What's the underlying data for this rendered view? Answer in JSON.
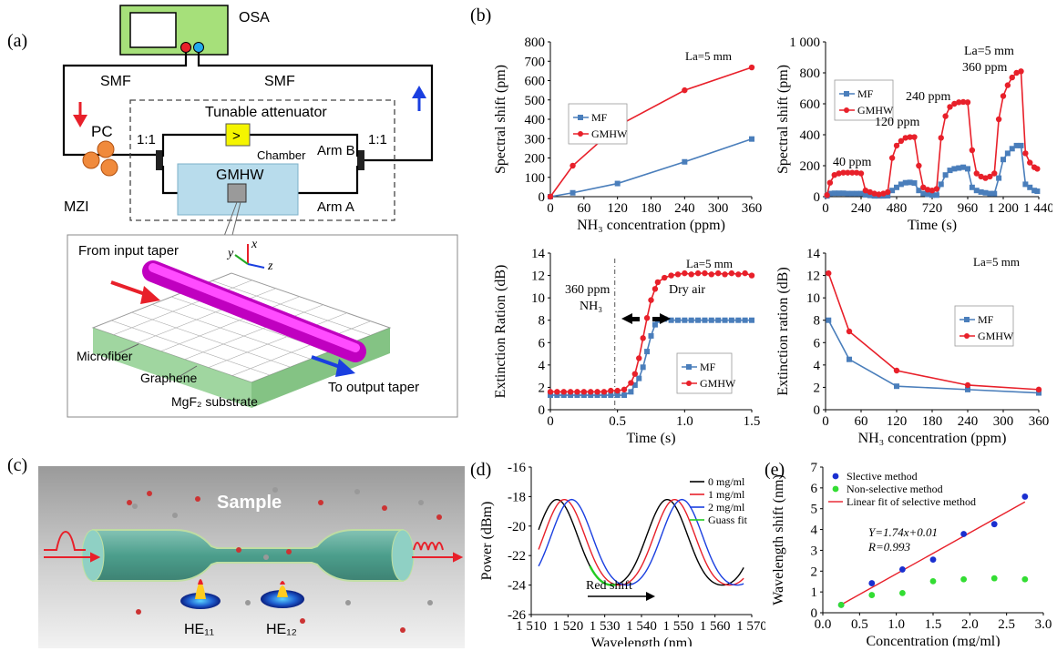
{
  "panel_labels": {
    "a": "(a)",
    "b": "(b)",
    "c": "(c)",
    "d": "(d)",
    "e": "(e)"
  },
  "schematic_a": {
    "osa": "OSA",
    "smf_left": "SMF",
    "smf_right": "SMF",
    "pc": "PC",
    "mzi": "MZI",
    "coupler_left": "1:1",
    "coupler_right": "1:1",
    "tunable_attenuator": "Tunable attenuator",
    "chamber": "Chamber",
    "gmhw": "GMHW",
    "arm_a": "Arm A",
    "arm_b": "Arm B",
    "attenuator_symbol": ">",
    "from_input_taper": "From input taper",
    "to_output_taper": "To output taper",
    "microfiber": "Microfiber",
    "graphene": "Graphene",
    "substrate": "MgF₂ substrate",
    "axis_x": "x",
    "axis_y": "y",
    "axis_z": "z",
    "colors": {
      "arrow_red": "#e8202a",
      "arrow_blue": "#1a3fe0",
      "fiber": "#e000e0",
      "substrate": "#8fcf8f",
      "osa_body": "#a6e07a",
      "attenuator": "#f5f500"
    }
  },
  "illustration_c": {
    "sample": "Sample",
    "mode1": "HE₁₁",
    "mode2": "HE₁₂"
  },
  "chart_data": [
    {
      "id": "b1",
      "type": "line",
      "ylabel": "Spectral shift (pm)",
      "xlabel": "NH₃ concentration (ppm)",
      "annotation": "La=5 mm",
      "x": [
        0,
        40,
        120,
        240,
        360
      ],
      "xticks": [
        "0",
        "60",
        "120",
        "180",
        "240",
        "300",
        "360"
      ],
      "yticks": [
        "0",
        "100",
        "200",
        "300",
        "400",
        "500",
        "600",
        "700",
        "800"
      ],
      "xlim": [
        0,
        360
      ],
      "ylim": [
        0,
        800
      ],
      "series": [
        {
          "name": "MF",
          "color": "#4a7ebb",
          "marker": "square",
          "values": [
            0,
            20,
            68,
            180,
            298
          ]
        },
        {
          "name": "GMHW",
          "color": "#e8202a",
          "marker": "circle",
          "values": [
            0,
            160,
            365,
            550,
            668
          ]
        }
      ]
    },
    {
      "id": "b2",
      "type": "line",
      "ylabel": "Spectral shift (pm)",
      "xlabel": "Time (s)",
      "annotations": [
        "La=5 mm",
        "360 ppm",
        "240 ppm",
        "120 ppm",
        "40 ppm"
      ],
      "xticks": [
        "0",
        "240",
        "480",
        "720",
        "960",
        "1 200",
        "1 440"
      ],
      "yticks": [
        "0",
        "200",
        "400",
        "600",
        "800",
        "1 000"
      ],
      "xlim": [
        0,
        1440
      ],
      "ylim": [
        0,
        1000
      ],
      "series": [
        {
          "name": "MF",
          "color": "#4a7ebb",
          "marker": "square",
          "x": [
            10,
            30,
            60,
            90,
            120,
            150,
            180,
            210,
            240,
            270,
            300,
            330,
            360,
            390,
            420,
            450,
            480,
            510,
            540,
            570,
            600,
            630,
            660,
            690,
            720,
            750,
            780,
            810,
            840,
            870,
            900,
            930,
            960,
            990,
            1020,
            1050,
            1080,
            1110,
            1140,
            1170,
            1200,
            1230,
            1260,
            1290,
            1320,
            1350,
            1380,
            1410,
            1430
          ],
          "values": [
            5,
            20,
            22,
            22,
            22,
            20,
            20,
            20,
            20,
            12,
            8,
            5,
            5,
            5,
            6,
            40,
            60,
            80,
            90,
            92,
            88,
            40,
            20,
            15,
            10,
            10,
            80,
            140,
            170,
            180,
            185,
            190,
            180,
            60,
            40,
            30,
            25,
            20,
            20,
            120,
            240,
            280,
            310,
            330,
            330,
            80,
            60,
            40,
            35
          ]
        },
        {
          "name": "GMHW",
          "color": "#e8202a",
          "marker": "circle",
          "x": [
            10,
            30,
            60,
            90,
            120,
            150,
            180,
            210,
            240,
            270,
            300,
            330,
            360,
            390,
            420,
            450,
            480,
            510,
            540,
            570,
            600,
            630,
            660,
            690,
            720,
            750,
            780,
            810,
            840,
            870,
            900,
            930,
            960,
            990,
            1020,
            1050,
            1080,
            1110,
            1140,
            1170,
            1200,
            1230,
            1260,
            1290,
            1320,
            1350,
            1380,
            1410,
            1430
          ],
          "values": [
            10,
            90,
            140,
            150,
            155,
            155,
            155,
            155,
            150,
            40,
            30,
            20,
            15,
            20,
            30,
            250,
            330,
            360,
            380,
            385,
            385,
            200,
            60,
            45,
            40,
            50,
            380,
            520,
            580,
            600,
            610,
            612,
            610,
            300,
            150,
            130,
            120,
            130,
            150,
            500,
            650,
            720,
            770,
            800,
            810,
            280,
            220,
            190,
            180
          ]
        }
      ]
    },
    {
      "id": "b3",
      "type": "line",
      "ylabel": "Extinction Ration (dB)",
      "xlabel": "Time (s)",
      "annotations": [
        "La=5 mm",
        "360 ppm",
        "NH₃",
        "Dry air"
      ],
      "xticks": [
        "0",
        "0.5",
        "1.0",
        "1.5"
      ],
      "yticks": [
        "0",
        "2",
        "4",
        "6",
        "8",
        "10",
        "12",
        "14"
      ],
      "xlim": [
        0,
        1.5
      ],
      "ylim": [
        0,
        14
      ],
      "series": [
        {
          "name": "MF",
          "color": "#4a7ebb",
          "marker": "square",
          "x": [
            0.0,
            0.05,
            0.1,
            0.15,
            0.2,
            0.25,
            0.3,
            0.35,
            0.4,
            0.45,
            0.5,
            0.55,
            0.6,
            0.63,
            0.66,
            0.69,
            0.72,
            0.75,
            0.78,
            0.8,
            0.85,
            0.9,
            0.95,
            1.0,
            1.05,
            1.1,
            1.15,
            1.2,
            1.25,
            1.3,
            1.35,
            1.4,
            1.45,
            1.5
          ],
          "values": [
            1.3,
            1.3,
            1.3,
            1.3,
            1.3,
            1.3,
            1.3,
            1.3,
            1.3,
            1.3,
            1.3,
            1.3,
            1.6,
            2.2,
            2.8,
            3.8,
            5.2,
            6.6,
            7.6,
            8.0,
            8.1,
            8.0,
            8.0,
            8.0,
            8.0,
            8.0,
            8.0,
            8.0,
            8.0,
            8.0,
            8.0,
            8.0,
            8.0,
            8.0
          ]
        },
        {
          "name": "GMHW",
          "color": "#e8202a",
          "marker": "circle",
          "x": [
            0.0,
            0.05,
            0.1,
            0.15,
            0.2,
            0.25,
            0.3,
            0.35,
            0.4,
            0.45,
            0.5,
            0.55,
            0.6,
            0.63,
            0.66,
            0.69,
            0.72,
            0.75,
            0.78,
            0.8,
            0.85,
            0.9,
            0.95,
            1.0,
            1.05,
            1.1,
            1.15,
            1.2,
            1.25,
            1.3,
            1.35,
            1.4,
            1.45,
            1.5
          ],
          "values": [
            1.6,
            1.6,
            1.6,
            1.6,
            1.6,
            1.6,
            1.6,
            1.6,
            1.6,
            1.7,
            1.7,
            1.8,
            2.4,
            3.2,
            4.6,
            6.4,
            8.2,
            9.8,
            10.8,
            11.4,
            11.8,
            12.0,
            12.1,
            12.2,
            12.1,
            12.2,
            12.2,
            12.1,
            12.2,
            12.1,
            12.2,
            12.1,
            12.2,
            12.0
          ]
        }
      ]
    },
    {
      "id": "b4",
      "type": "line",
      "ylabel": "Extinction ration (dB)",
      "xlabel": "NH₃ concentration (ppm)",
      "annotation": "La=5 mm",
      "x": [
        5,
        40,
        120,
        240,
        360
      ],
      "xticks": [
        "0",
        "60",
        "120",
        "180",
        "240",
        "300",
        "360"
      ],
      "yticks": [
        "0",
        "2",
        "4",
        "6",
        "8",
        "10",
        "12",
        "14"
      ],
      "xlim": [
        0,
        360
      ],
      "ylim": [
        0,
        14
      ],
      "series": [
        {
          "name": "MF",
          "color": "#4a7ebb",
          "marker": "square",
          "values": [
            8.0,
            4.5,
            2.1,
            1.8,
            1.5
          ]
        },
        {
          "name": "GMHW",
          "color": "#e8202a",
          "marker": "circle",
          "values": [
            12.2,
            7.0,
            3.5,
            2.2,
            1.8
          ]
        }
      ]
    },
    {
      "id": "d",
      "type": "line",
      "ylabel": "Power (dBm)",
      "xlabel": "Wavelength (nm)",
      "annotation": "Red shift",
      "xticks": [
        "1 510",
        "1 520",
        "1 530",
        "1 540",
        "1 550",
        "1 560",
        "1 570"
      ],
      "yticks": [
        "-26",
        "-24",
        "-22",
        "-20",
        "-18",
        "-16"
      ],
      "xlim": [
        1510,
        1570
      ],
      "ylim": [
        -26,
        -16
      ],
      "series": [
        {
          "name": "0 mg/ml",
          "color": "#000000",
          "x_start": 1512,
          "x_end": 1568,
          "period": 30,
          "peak_at": 1517
        },
        {
          "name": "1 mg/ml",
          "color": "#e8202a",
          "x_start": 1512,
          "x_end": 1568,
          "period": 30,
          "peak_at": 1519
        },
        {
          "name": "2 mg/ml",
          "color": "#1a3fe0",
          "x_start": 1512,
          "x_end": 1568,
          "period": 30,
          "peak_at": 1521
        },
        {
          "name": "Guass fit",
          "color": "#22cc22",
          "x_start": 1526,
          "x_end": 1533,
          "period": 30,
          "peak_at": 1517
        }
      ]
    },
    {
      "id": "e",
      "type": "scatter",
      "ylabel": "Wavelength shift (nm)",
      "xlabel": "Concentration (mg/ml)",
      "equation": "Y=1.74x+0.01",
      "r_value": "R=0.993",
      "xticks": [
        "0.0",
        "0.5",
        "1.0",
        "1.5",
        "2.0",
        "2.5",
        "3.0"
      ],
      "yticks": [
        "0",
        "1",
        "2",
        "3",
        "4",
        "5",
        "6",
        "7"
      ],
      "xlim": [
        -0.3,
        3.3
      ],
      "ylim": [
        -0.4,
        7
      ],
      "series": [
        {
          "name": "Slective method",
          "color": "#1a2fd0",
          "x": [
            0.0,
            0.5,
            1.0,
            1.5,
            2.0,
            2.5,
            3.0
          ],
          "values": [
            0.0,
            1.1,
            1.8,
            2.3,
            3.6,
            4.1,
            5.5
          ]
        },
        {
          "name": "Non-selective method",
          "color": "#33dd33",
          "x": [
            0.0,
            0.5,
            1.0,
            1.5,
            2.0,
            2.5,
            3.0
          ],
          "values": [
            0.0,
            0.5,
            0.6,
            1.2,
            1.3,
            1.35,
            1.3
          ]
        },
        {
          "name": "Linear fit of selective method",
          "color": "#e8202a",
          "x": [
            0.0,
            3.0
          ],
          "values": [
            0.01,
            5.23
          ]
        }
      ]
    }
  ]
}
